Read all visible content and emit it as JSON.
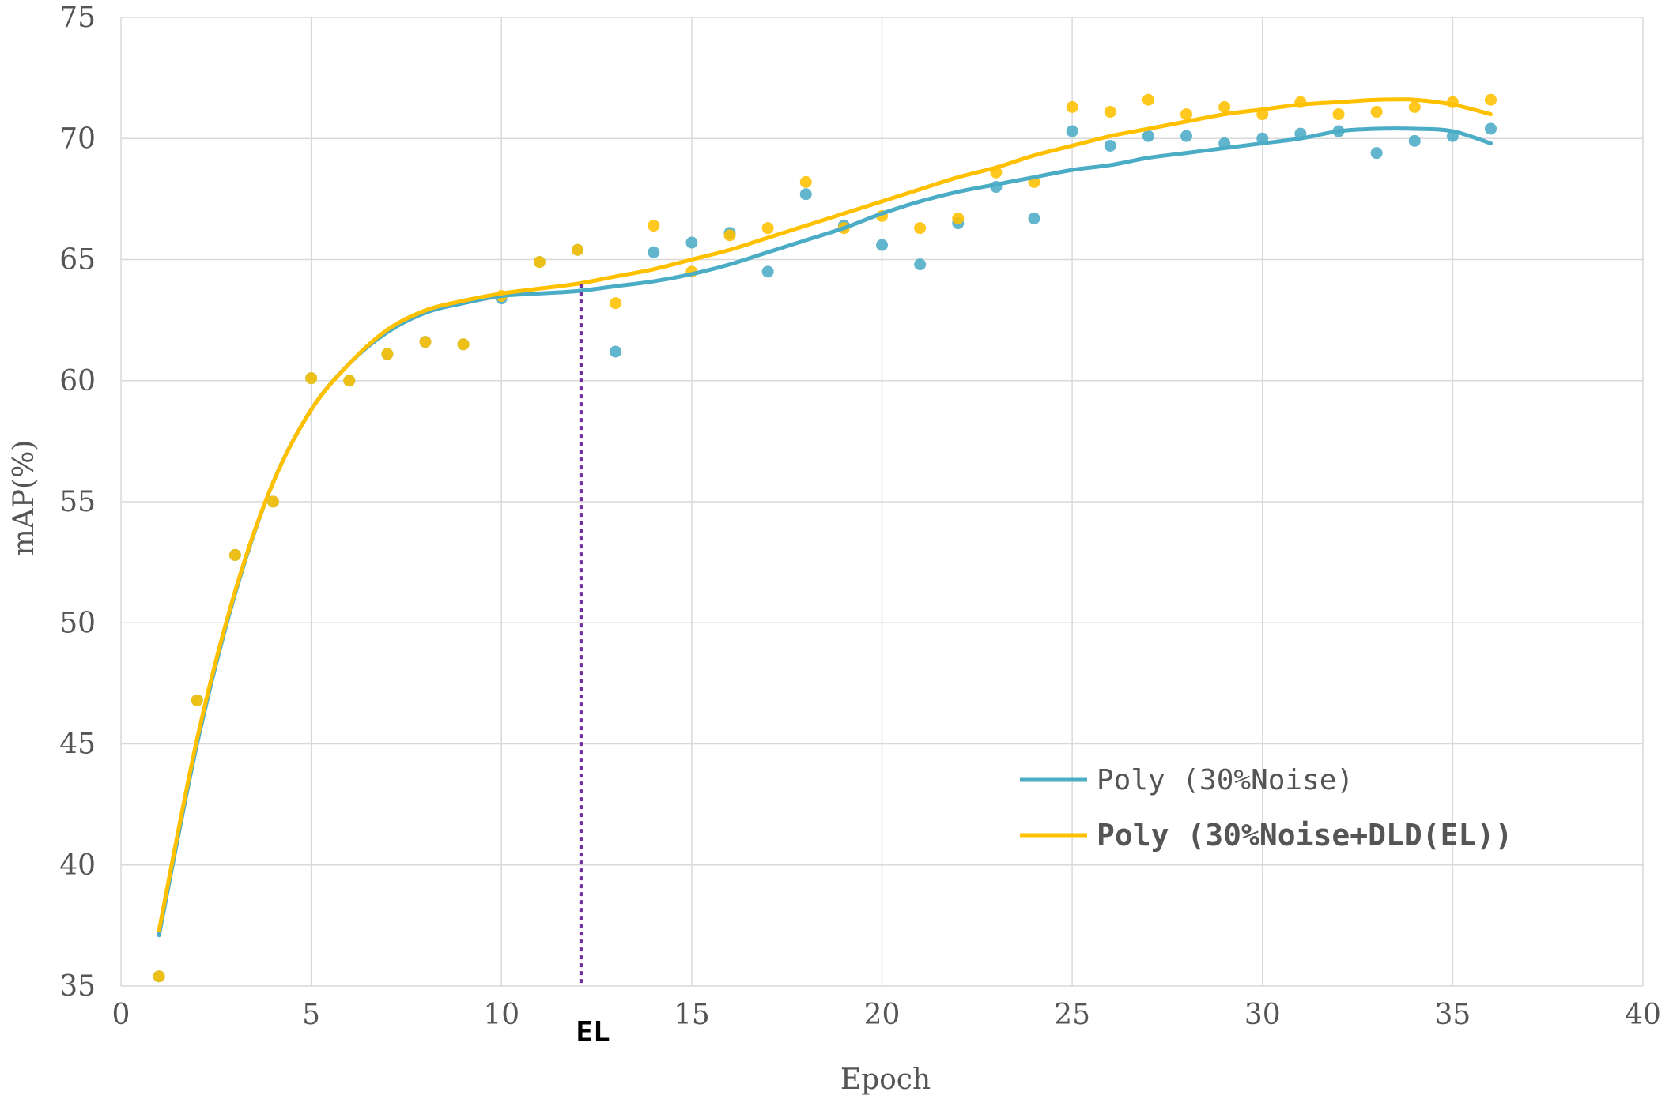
{
  "chart_data": {
    "type": "scatter",
    "xlabel": "Epoch",
    "ylabel": "mAP(%)",
    "xlim": [
      0,
      40
    ],
    "ylim": [
      35,
      75
    ],
    "xticks": [
      "0",
      "5",
      "10",
      "15",
      "20",
      "25",
      "30",
      "35",
      "40"
    ],
    "yticks": [
      "35",
      "40",
      "45",
      "50",
      "55",
      "60",
      "65",
      "70",
      "75"
    ],
    "grid": true,
    "legend_position": "bottom-right",
    "marker": {
      "label": "EL",
      "x": 12.1,
      "y_top": 64.0,
      "color": "#7030A0"
    },
    "series": [
      {
        "name": "Poly (30%Noise)",
        "color": "#4BACC6",
        "x": [
          1,
          2,
          3,
          4,
          5,
          6,
          7,
          8,
          9,
          10,
          11,
          12,
          13,
          14,
          15,
          16,
          17,
          18,
          19,
          20,
          21,
          22,
          23,
          24,
          25,
          26,
          27,
          28,
          29,
          30,
          31,
          32,
          33,
          34,
          35,
          36
        ],
        "y": [
          35.4,
          46.8,
          52.8,
          55.0,
          60.1,
          60.0,
          61.1,
          61.6,
          61.5,
          63.4,
          64.9,
          65.4,
          61.2,
          65.3,
          65.7,
          66.1,
          64.5,
          67.7,
          66.4,
          65.6,
          64.8,
          66.5,
          68.0,
          66.7,
          70.3,
          69.7,
          70.1,
          70.1,
          69.8,
          70.0,
          70.2,
          70.3,
          69.4,
          69.9,
          70.1,
          70.4
        ],
        "trend": [
          [
            1,
            37.1
          ],
          [
            2,
            45.0
          ],
          [
            3,
            51.2
          ],
          [
            4,
            55.8
          ],
          [
            5,
            58.8
          ],
          [
            6,
            60.7
          ],
          [
            7,
            62.0
          ],
          [
            8,
            62.8
          ],
          [
            9,
            63.2
          ],
          [
            10,
            63.5
          ],
          [
            11,
            63.6
          ],
          [
            12,
            63.7
          ],
          [
            13,
            63.9
          ],
          [
            14,
            64.1
          ],
          [
            15,
            64.4
          ],
          [
            16,
            64.8
          ],
          [
            17,
            65.3
          ],
          [
            18,
            65.8
          ],
          [
            19,
            66.3
          ],
          [
            20,
            66.9
          ],
          [
            21,
            67.4
          ],
          [
            22,
            67.8
          ],
          [
            23,
            68.1
          ],
          [
            24,
            68.4
          ],
          [
            25,
            68.7
          ],
          [
            26,
            68.9
          ],
          [
            27,
            69.2
          ],
          [
            28,
            69.4
          ],
          [
            29,
            69.6
          ],
          [
            30,
            69.8
          ],
          [
            31,
            70.0
          ],
          [
            32,
            70.3
          ],
          [
            33,
            70.4
          ],
          [
            34,
            70.4
          ],
          [
            35,
            70.3
          ],
          [
            36,
            69.8
          ]
        ]
      },
      {
        "name": "Poly (30%Noise+DLD(EL))",
        "color": "#FFC000",
        "x": [
          1,
          2,
          3,
          4,
          5,
          6,
          7,
          8,
          9,
          10,
          11,
          12,
          13,
          14,
          15,
          16,
          17,
          18,
          19,
          20,
          21,
          22,
          23,
          24,
          25,
          26,
          27,
          28,
          29,
          30,
          31,
          32,
          33,
          34,
          35,
          36
        ],
        "y": [
          35.4,
          46.8,
          52.8,
          55.0,
          60.1,
          60.0,
          61.1,
          61.6,
          61.5,
          63.5,
          64.9,
          65.4,
          63.2,
          66.4,
          64.5,
          66.0,
          66.3,
          68.2,
          66.3,
          66.8,
          66.3,
          66.7,
          68.6,
          68.2,
          71.3,
          71.1,
          71.6,
          71.0,
          71.3,
          71.0,
          71.5,
          71.0,
          71.1,
          71.3,
          71.5,
          71.6
        ],
        "trend": [
          [
            1,
            37.3
          ],
          [
            2,
            45.2
          ],
          [
            3,
            51.3
          ],
          [
            4,
            55.8
          ],
          [
            5,
            58.8
          ],
          [
            6,
            60.7
          ],
          [
            7,
            62.1
          ],
          [
            8,
            62.9
          ],
          [
            9,
            63.3
          ],
          [
            10,
            63.6
          ],
          [
            11,
            63.8
          ],
          [
            12,
            64.0
          ],
          [
            13,
            64.3
          ],
          [
            14,
            64.6
          ],
          [
            15,
            65.0
          ],
          [
            16,
            65.4
          ],
          [
            17,
            65.9
          ],
          [
            18,
            66.4
          ],
          [
            19,
            66.9
          ],
          [
            20,
            67.4
          ],
          [
            21,
            67.9
          ],
          [
            22,
            68.4
          ],
          [
            23,
            68.8
          ],
          [
            24,
            69.3
          ],
          [
            25,
            69.7
          ],
          [
            26,
            70.1
          ],
          [
            27,
            70.4
          ],
          [
            28,
            70.7
          ],
          [
            29,
            71.0
          ],
          [
            30,
            71.2
          ],
          [
            31,
            71.4
          ],
          [
            32,
            71.5
          ],
          [
            33,
            71.6
          ],
          [
            34,
            71.6
          ],
          [
            35,
            71.4
          ],
          [
            36,
            71.0
          ]
        ]
      }
    ]
  }
}
